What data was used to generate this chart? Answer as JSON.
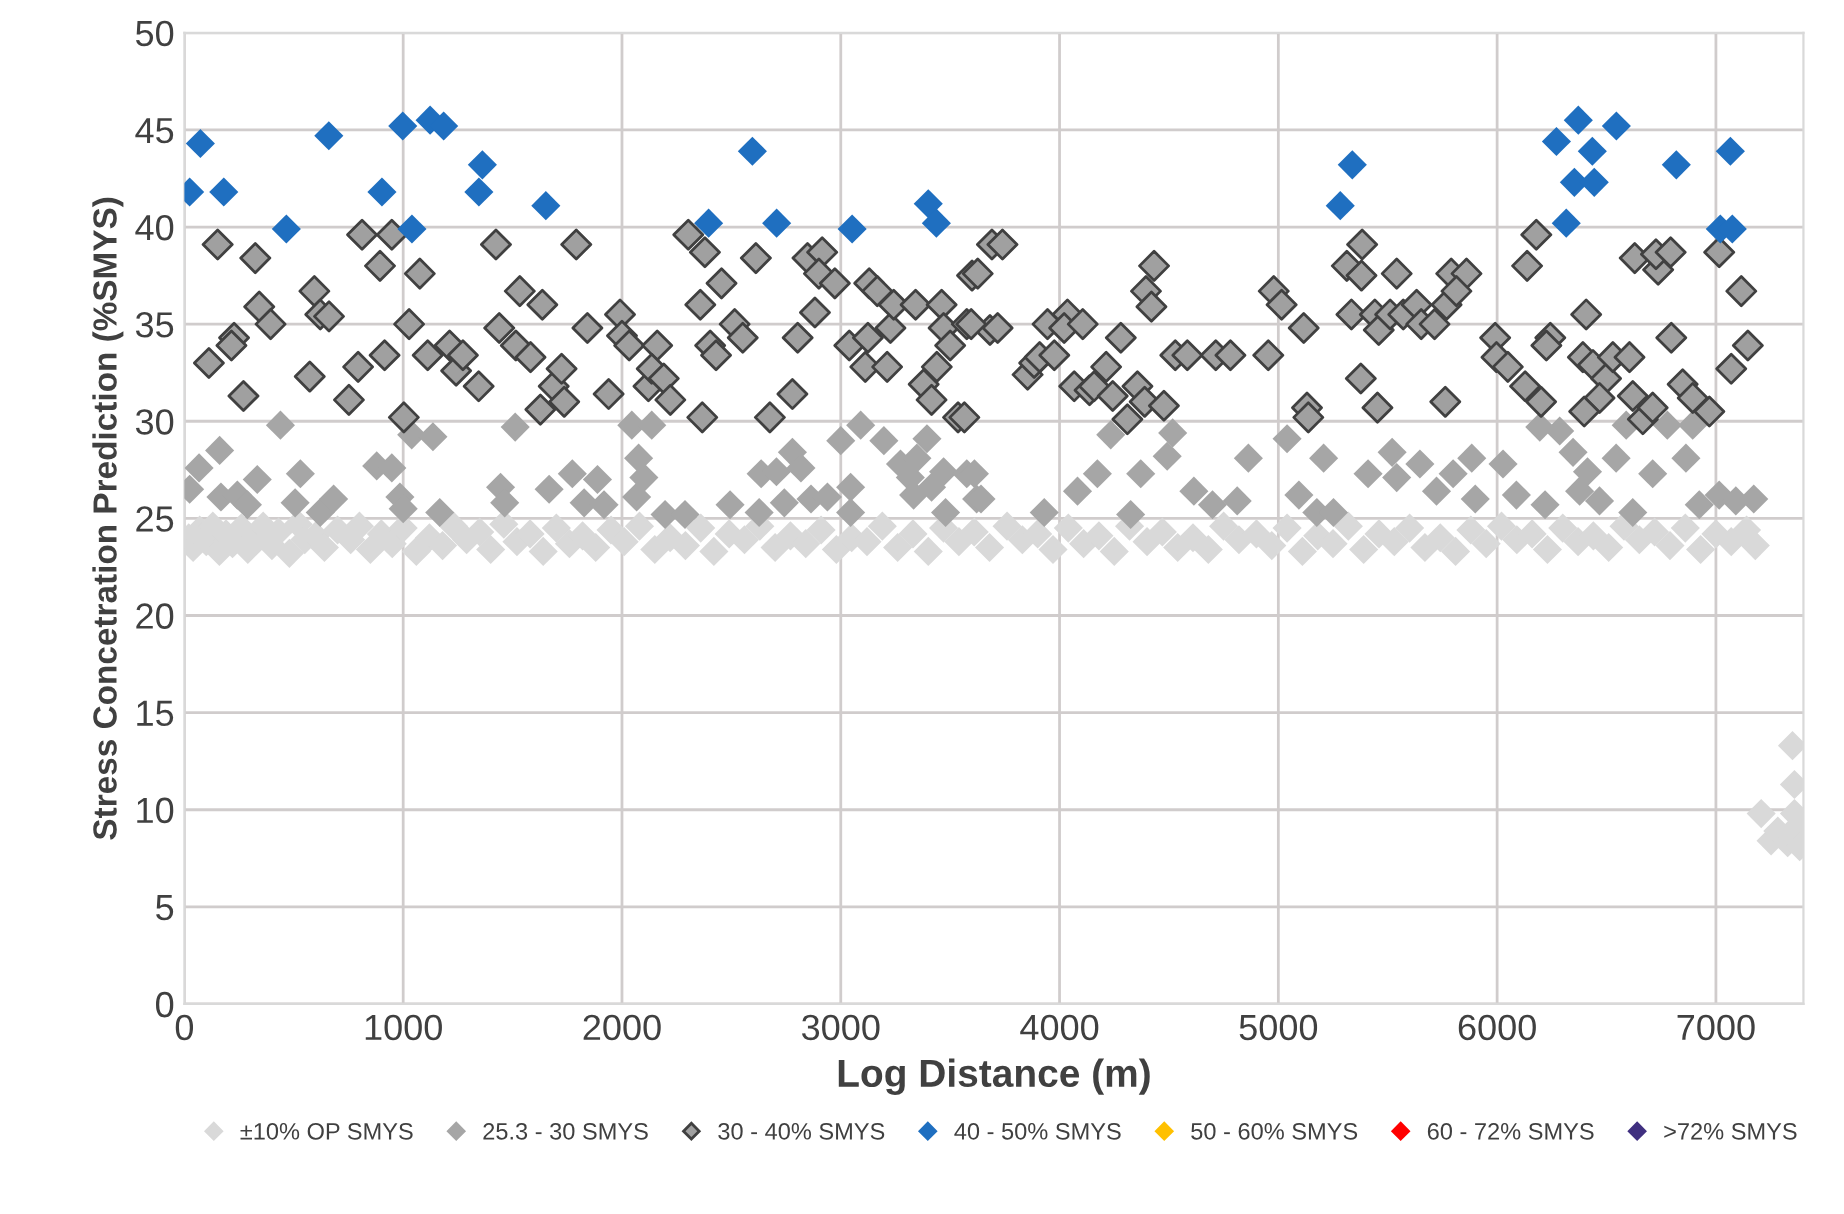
{
  "chart_data": {
    "type": "scatter",
    "xlabel": "Log Distance (m)",
    "ylabel": "Stress Concetration Prediction (%SMYS)",
    "xlim": [
      0,
      7400
    ],
    "xticks": [
      0,
      1000,
      2000,
      3000,
      4000,
      5000,
      6000,
      7000
    ],
    "ylim": [
      0,
      50
    ],
    "yticks": [
      0,
      5,
      10,
      15,
      20,
      25,
      30,
      35,
      40,
      45,
      50
    ],
    "grid": true,
    "legend": "bottom",
    "marker": "diamond",
    "series": [
      {
        "name": "±10% OP SMYS",
        "color": "#d9d9d9",
        "x": [
          20,
          40,
          70,
          100,
          130,
          160,
          190,
          220,
          260,
          290,
          320,
          360,
          400,
          430,
          480,
          520,
          550,
          600,
          640,
          700,
          760,
          800,
          850,
          900,
          950,
          1000,
          1060,
          1120,
          1180,
          1230,
          1290,
          1350,
          1400,
          1460,
          1520,
          1580,
          1640,
          1700,
          1760,
          1820,
          1880,
          1950,
          2010,
          2080,
          2150,
          2220,
          2290,
          2360,
          2420,
          2490,
          2560,
          2630,
          2700,
          2770,
          2840,
          2910,
          2980,
          3050,
          3120,
          3190,
          3260,
          3330,
          3400,
          3470,
          3540,
          3610,
          3680,
          3760,
          3830,
          3900,
          3970,
          4040,
          4110,
          4180,
          4250,
          4320,
          4400,
          4470,
          4540,
          4610,
          4680,
          4750,
          4820,
          4900,
          4970,
          5040,
          5110,
          5180,
          5250,
          5320,
          5390,
          5460,
          5530,
          5600,
          5670,
          5740,
          5810,
          5880,
          5950,
          6020,
          6090,
          6160,
          6230,
          6300,
          6370,
          6440,
          6510,
          6580,
          6650,
          6720,
          6790,
          6860,
          6930,
          7000,
          7070,
          7140,
          7180,
          7207,
          7252,
          7283,
          7328,
          7350,
          7359,
          7359,
          7368,
          7383
        ],
        "values": [
          24.0,
          23.5,
          24.4,
          23.8,
          24.6,
          23.3,
          24.2,
          23.7,
          24.5,
          23.4,
          24.0,
          24.6,
          23.6,
          24.3,
          23.2,
          24.7,
          23.9,
          24.1,
          23.5,
          24.4,
          23.9,
          24.6,
          23.4,
          24.2,
          23.7,
          24.5,
          23.3,
          24.0,
          23.6,
          24.6,
          23.9,
          24.3,
          23.4,
          24.7,
          23.8,
          24.2,
          23.3,
          24.5,
          23.7,
          24.1,
          23.5,
          24.4,
          23.8,
          24.6,
          23.4,
          24.0,
          23.6,
          24.5,
          23.3,
          24.2,
          23.9,
          24.6,
          23.5,
          24.1,
          23.7,
          24.4,
          23.4,
          24.0,
          23.8,
          24.6,
          23.5,
          24.2,
          23.3,
          24.5,
          23.8,
          24.3,
          23.5,
          24.6,
          23.9,
          24.2,
          23.4,
          24.5,
          23.7,
          24.1,
          23.3,
          24.6,
          23.8,
          24.3,
          23.5,
          24.0,
          23.4,
          24.6,
          23.9,
          24.2,
          23.6,
          24.5,
          23.3,
          24.1,
          23.7,
          24.6,
          23.4,
          24.2,
          23.8,
          24.5,
          23.5,
          24.0,
          23.3,
          24.4,
          23.7,
          24.6,
          23.9,
          24.2,
          23.4,
          24.5,
          23.8,
          24.1,
          23.5,
          24.6,
          23.9,
          24.3,
          23.6,
          24.5,
          23.4,
          24.2,
          23.8,
          24.4,
          23.6,
          9.8,
          8.4,
          8.9,
          8.3,
          13.3,
          11.3,
          9.8,
          9.1,
          8.1
        ]
      },
      {
        "name": "25.3 - 30 SMYS",
        "color": "#a6a6a6",
        "x": [
          24,
          67,
          161,
          167,
          242,
          288,
          333,
          439,
          506,
          530,
          621,
          682,
          879,
          948,
          985,
          1000,
          1039,
          1136,
          1167,
          1445,
          1464,
          1512,
          1667,
          1773,
          1827,
          1888,
          1918,
          2045,
          2076,
          2100,
          2136,
          2067,
          2197,
          2288,
          2494,
          2627,
          2636,
          2706,
          2742,
          2779,
          2818,
          2864,
          2939,
          3000,
          3045,
          3045,
          3091,
          3197,
          3273,
          3318,
          3348,
          3394,
          3333,
          3415,
          3470,
          3479,
          3576,
          3621,
          3611,
          3641,
          3930,
          4082,
          4173,
          4234,
          4325,
          4371,
          4492,
          4517,
          4614,
          4699,
          4863,
          4812,
          5040,
          5094,
          5207,
          5176,
          5252,
          5410,
          5520,
          5541,
          5647,
          5723,
          5799,
          5884,
          5900,
          6027,
          6088,
          6195,
          6219,
          6286,
          6347,
          6377,
          6413,
          6468,
          6544,
          6590,
          6620,
          6711,
          6778,
          6863,
          6894,
          6924,
          7015,
          7091,
          7173
        ],
        "values": [
          26.5,
          27.6,
          28.5,
          26.1,
          26.2,
          25.7,
          27.0,
          29.8,
          25.8,
          27.3,
          25.3,
          26.0,
          27.7,
          27.6,
          26.1,
          25.5,
          29.3,
          29.2,
          25.3,
          26.6,
          25.8,
          29.7,
          26.5,
          27.3,
          25.8,
          27.0,
          25.7,
          29.8,
          28.1,
          27.1,
          29.8,
          26.1,
          25.2,
          25.2,
          25.7,
          25.3,
          27.3,
          27.4,
          25.8,
          28.4,
          27.6,
          26.0,
          26.1,
          29.0,
          26.6,
          25.3,
          29.8,
          29.0,
          27.8,
          27.1,
          28.1,
          29.1,
          26.2,
          26.6,
          27.4,
          25.3,
          27.3,
          26.0,
          27.3,
          26.0,
          25.3,
          26.4,
          27.3,
          29.3,
          25.2,
          27.3,
          28.2,
          29.4,
          26.4,
          25.7,
          28.1,
          25.9,
          29.1,
          26.2,
          28.1,
          25.3,
          25.3,
          27.3,
          28.4,
          27.1,
          27.8,
          26.4,
          27.3,
          28.1,
          26.0,
          27.8,
          26.2,
          29.7,
          25.7,
          29.5,
          28.4,
          26.4,
          27.4,
          25.9,
          28.1,
          29.8,
          25.3,
          27.3,
          29.8,
          28.1,
          29.8,
          25.7,
          26.2,
          25.9,
          26.0
        ]
      },
      {
        "name": "30 - 40% SMYS",
        "color": "#a0a0a0",
        "x": [
          152,
          112,
          227,
          215,
          270,
          324,
          342,
          394,
          594,
          573,
          621,
          661,
          752,
          794,
          812,
          894,
          915,
          948,
          1003,
          1027,
          1076,
          1112,
          1212,
          1242,
          1273,
          1345,
          1424,
          1439,
          1515,
          1533,
          1582,
          1636,
          1627,
          1688,
          1724,
          1736,
          1791,
          1842,
          1939,
          1991,
          2000,
          2033,
          2121,
          2161,
          2136,
          2191,
          2221,
          2303,
          2379,
          2358,
          2455,
          2403,
          2430,
          2515,
          2552,
          2367,
          2612,
          2676,
          2779,
          2803,
          2848,
          2882,
          2915,
          2900,
          2973,
          3039,
          3130,
          3167,
          3124,
          3112,
          3212,
          3227,
          3242,
          3342,
          3379,
          3415,
          3439,
          3461,
          3470,
          3500,
          3536,
          3576,
          3600,
          3691,
          3682,
          3739,
          3626,
          3596,
          3717,
          3565,
          3854,
          3884,
          3909,
          3976,
          3945,
          4036,
          4021,
          4106,
          4067,
          4137,
          4158,
          4213,
          4243,
          4280,
          4310,
          4356,
          4389,
          4477,
          4432,
          4395,
          4420,
          4529,
          4584,
          4714,
          4781,
          4954,
          4979,
          5015,
          5116,
          5131,
          5137,
          5313,
          5383,
          5380,
          5334,
          5377,
          5453,
          5541,
          5441,
          5459,
          5511,
          5571,
          5632,
          5653,
          5714,
          5769,
          5790,
          5860,
          5814,
          5763,
          5991,
          5997,
          6049,
          6128,
          6201,
          6137,
          6179,
          6243,
          6225,
          6407,
          6392,
          6438,
          6498,
          6468,
          6398,
          6529,
          6605,
          6629,
          6736,
          6726,
          6793,
          6620,
          6666,
          6711,
          6796,
          6848,
          6894,
          6970,
          7015,
          7116,
          7146,
          7070
        ],
        "values": [
          39.1,
          33.0,
          34.3,
          33.9,
          31.3,
          38.4,
          35.9,
          35.0,
          36.7,
          32.3,
          35.5,
          35.4,
          31.1,
          32.8,
          39.6,
          38.0,
          33.4,
          39.6,
          30.2,
          35.0,
          37.6,
          33.4,
          33.9,
          32.6,
          33.4,
          31.8,
          39.1,
          34.8,
          33.9,
          36.7,
          33.3,
          36.0,
          30.6,
          31.8,
          32.7,
          31.0,
          39.1,
          34.8,
          31.4,
          35.5,
          34.4,
          33.9,
          31.8,
          33.9,
          32.7,
          32.2,
          31.1,
          39.6,
          38.7,
          36.0,
          37.1,
          33.9,
          33.4,
          35.0,
          34.3,
          30.2,
          38.4,
          30.2,
          31.4,
          34.3,
          38.4,
          35.6,
          38.7,
          37.6,
          37.1,
          33.9,
          37.1,
          36.7,
          34.3,
          32.8,
          32.8,
          34.8,
          36.0,
          36.0,
          31.9,
          31.1,
          32.8,
          36.0,
          34.8,
          33.9,
          30.2,
          35.0,
          37.5,
          39.1,
          34.7,
          39.1,
          37.6,
          35.0,
          34.8,
          30.2,
          32.4,
          33.0,
          33.3,
          33.4,
          35.0,
          35.5,
          34.8,
          35.0,
          31.8,
          31.6,
          31.8,
          32.8,
          31.3,
          34.3,
          30.1,
          31.8,
          31.0,
          30.8,
          38.0,
          36.7,
          35.9,
          33.4,
          33.4,
          33.4,
          33.4,
          33.4,
          36.7,
          36.0,
          34.8,
          30.7,
          30.2,
          38.0,
          39.1,
          37.5,
          35.5,
          32.2,
          30.7,
          37.6,
          35.5,
          34.7,
          35.5,
          35.5,
          36.0,
          35.0,
          35.0,
          36.0,
          37.6,
          37.6,
          36.7,
          31.0,
          34.3,
          33.3,
          32.8,
          31.8,
          31.0,
          38.0,
          39.6,
          34.3,
          33.9,
          35.5,
          33.3,
          32.9,
          32.2,
          31.2,
          30.5,
          33.3,
          33.3,
          38.4,
          37.8,
          38.6,
          38.7,
          31.3,
          30.1,
          30.7,
          34.3,
          31.9,
          31.2,
          30.5,
          38.7,
          36.7,
          33.9,
          32.7
        ]
      },
      {
        "name": "40 - 50% SMYS",
        "color": "#1f6fc0",
        "x": [
          24,
          73,
          180,
          466,
          660,
          903,
          998,
          1040,
          1123,
          1185,
          1362,
          1346,
          1652,
          2396,
          2596,
          2707,
          3052,
          3400,
          3437,
          5338,
          5283,
          6271,
          6371,
          6545,
          6435,
          6353,
          6444,
          6316,
          6819,
          7066,
          7020,
          7075
        ],
        "values": [
          41.8,
          44.3,
          41.8,
          39.9,
          44.7,
          41.8,
          45.2,
          39.9,
          45.5,
          45.2,
          43.2,
          41.8,
          41.1,
          40.2,
          43.9,
          40.2,
          39.9,
          41.2,
          40.2,
          43.2,
          41.1,
          44.4,
          45.5,
          45.2,
          43.9,
          42.3,
          42.3,
          40.2,
          43.2,
          43.9,
          39.9,
          39.9
        ]
      },
      {
        "name": "50 - 60% SMYS",
        "color": "#ffc000"
      },
      {
        "name": "60 - 72% SMYS",
        "color": "#ff0000"
      },
      {
        "name": ">72% SMYS",
        "color": "#403080"
      }
    ]
  }
}
